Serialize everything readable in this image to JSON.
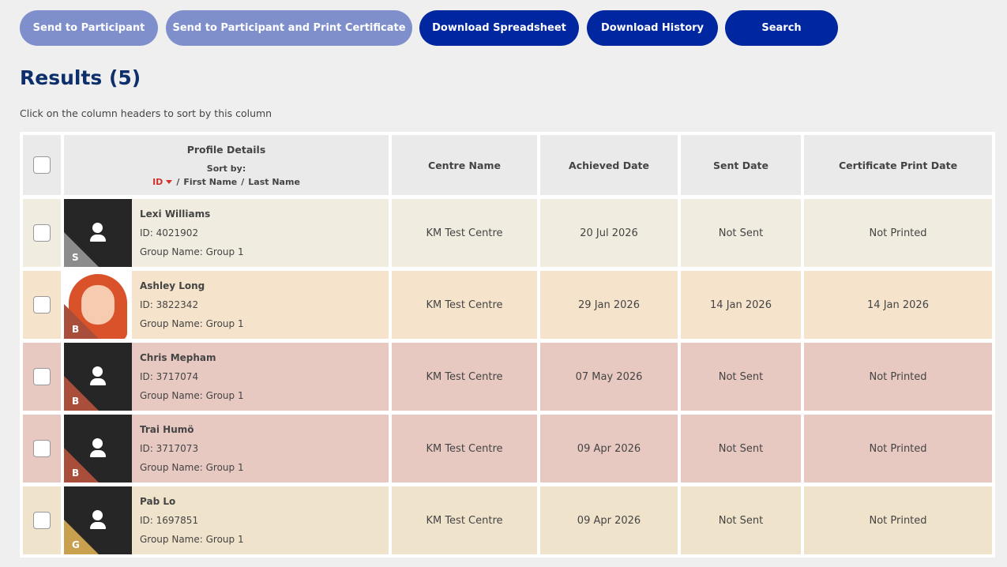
{
  "buttons": [
    {
      "label": "Send to Participant",
      "enabled": false
    },
    {
      "label": "Send to Participant and Print Certificate",
      "enabled": false
    },
    {
      "label": "Download Spreadsheet",
      "enabled": true
    },
    {
      "label": "Download History",
      "enabled": true
    },
    {
      "label": "Search",
      "enabled": true
    }
  ],
  "results_title": "Results (5)",
  "hint": "Click on the column headers to sort by this column",
  "table": {
    "profile_header": "Profile Details",
    "sort_by": "Sort by:",
    "sort_options": [
      "ID",
      "First Name",
      "Last Name"
    ],
    "sort_separator": "/",
    "columns": [
      "Centre Name",
      "Achieved Date",
      "Sent Date",
      "Certificate Print Date"
    ],
    "rows": [
      {
        "name": "Lexi Williams",
        "id": "ID: 4021902",
        "group": "Group Name: Group 1",
        "badge": "S",
        "badge_color": "#8c8c8c",
        "background": "#f0ece0",
        "photo": false,
        "cells": [
          "KM Test Centre",
          "20 Jul 2026",
          "Not Sent",
          "Not Printed"
        ]
      },
      {
        "name": "Ashley Long",
        "id": "ID: 3822342",
        "group": "Group Name: Group 1",
        "badge": "B",
        "badge_color": "#a84e3a",
        "background": "#f5e4cb",
        "photo": true,
        "cells": [
          "KM Test Centre",
          "29 Jan 2026",
          "14 Jan 2026",
          "14 Jan 2026"
        ]
      },
      {
        "name": "Chris Mepham",
        "id": "ID: 3717074",
        "group": "Group Name: Group 1",
        "badge": "B",
        "badge_color": "#a84e3a",
        "background": "#e8c9c2",
        "photo": false,
        "cells": [
          "KM Test Centre",
          "07 May 2026",
          "Not Sent",
          "Not Printed"
        ]
      },
      {
        "name": "Trai Humö",
        "id": "ID: 3717073",
        "group": "Group Name: Group 1",
        "badge": "B",
        "badge_color": "#a84e3a",
        "background": "#e8c9c2",
        "photo": false,
        "cells": [
          "KM Test Centre",
          "09 Apr 2026",
          "Not Sent",
          "Not Printed"
        ]
      },
      {
        "name": "Pab Lo",
        "id": "ID: 1697851",
        "group": "Group Name: Group 1",
        "badge": "G",
        "badge_color": "#c9a04e",
        "background": "#efe3cb",
        "photo": false,
        "cells": [
          "KM Test Centre",
          "09 Apr 2026",
          "Not Sent",
          "Not Printed"
        ]
      }
    ]
  }
}
